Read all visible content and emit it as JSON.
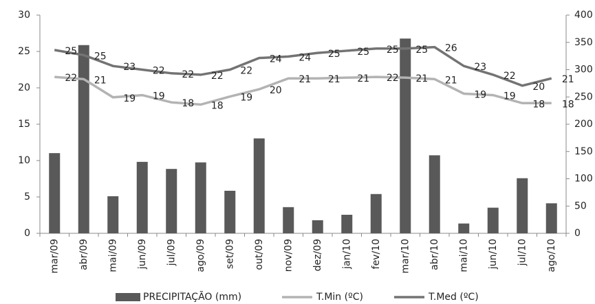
{
  "chart_data": {
    "type": "bar-line",
    "categories": [
      "mar/09",
      "abr/09",
      "mai/09",
      "jun/09",
      "jul/09",
      "ago/09",
      "set/09",
      "out/09",
      "nov/09",
      "dez/09",
      "jan/10",
      "fev/10",
      "mar/10",
      "abr/10",
      "mai/10",
      "jun/10",
      "jul/10",
      "ago/10"
    ],
    "series": [
      {
        "name": "PRECIPITAÇÃO (mm)",
        "type": "bar",
        "axis": "y2",
        "color": "#595959",
        "values": [
          147,
          345,
          68,
          131,
          118,
          130,
          78,
          174,
          48,
          24,
          34,
          72,
          357,
          143,
          18,
          47,
          101,
          55
        ]
      },
      {
        "name": "T.Min (ºC)",
        "type": "line",
        "color": "#b3b3b3",
        "values": [
          21.5,
          21.2,
          18.7,
          19.0,
          18.0,
          17.7,
          18.8,
          19.8,
          21.3,
          21.3,
          21.4,
          21.5,
          21.4,
          21.2,
          19.2,
          19.0,
          17.9,
          17.9
        ],
        "value_labels": [
          "22",
          "21",
          "19",
          "19",
          "18",
          "18",
          "19",
          "20",
          "21",
          "21",
          "21",
          "22",
          "21",
          "21",
          "19",
          "19",
          "18",
          "18"
        ]
      },
      {
        "name": "T.Med (ºC)",
        "type": "line",
        "color": "#737373",
        "values": [
          25.2,
          24.5,
          23.0,
          22.5,
          22.0,
          21.8,
          22.5,
          24.1,
          24.3,
          24.8,
          25.1,
          25.4,
          25.4,
          25.6,
          23.0,
          21.8,
          20.3,
          21.3
        ],
        "value_labels": [
          "25",
          "25",
          "23",
          "22",
          "22",
          "22",
          "22",
          "24",
          "24",
          "25",
          "25",
          "25",
          "25",
          "26",
          "23",
          "22",
          "20",
          "21"
        ]
      }
    ],
    "ylim": [
      0,
      30
    ],
    "yticks": [
      0,
      5,
      10,
      15,
      20,
      25,
      30
    ],
    "y2lim": [
      0,
      400
    ],
    "y2ticks": [
      0,
      50,
      100,
      150,
      200,
      250,
      300,
      350,
      400
    ]
  }
}
